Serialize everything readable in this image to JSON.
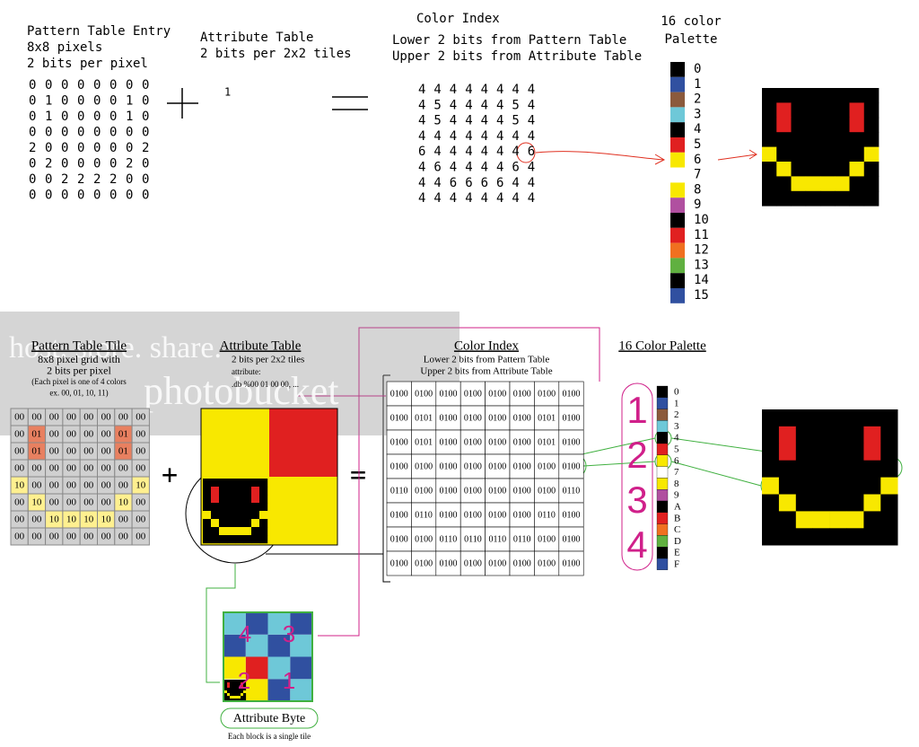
{
  "top": {
    "pattern": {
      "lines": [
        "Pattern Table Entry",
        "8x8 pixels",
        "2 bits per pixel"
      ],
      "grid": [
        [
          "0",
          "0",
          "0",
          "0",
          "0",
          "0",
          "0",
          "0"
        ],
        [
          "0",
          "1",
          "0",
          "0",
          "0",
          "0",
          "1",
          "0"
        ],
        [
          "0",
          "1",
          "0",
          "0",
          "0",
          "0",
          "1",
          "0"
        ],
        [
          "0",
          "0",
          "0",
          "0",
          "0",
          "0",
          "0",
          "0"
        ],
        [
          "2",
          "0",
          "0",
          "0",
          "0",
          "0",
          "0",
          "2"
        ],
        [
          "0",
          "2",
          "0",
          "0",
          "0",
          "0",
          "2",
          "0"
        ],
        [
          "0",
          "0",
          "2",
          "2",
          "2",
          "2",
          "0",
          "0"
        ],
        [
          "0",
          "0",
          "0",
          "0",
          "0",
          "0",
          "0",
          "0"
        ]
      ]
    },
    "attribute": {
      "lines": [
        "Attribute Table",
        "2 bits per 2x2 tiles"
      ],
      "value": "1"
    },
    "color_index": {
      "title": "Color Index",
      "lines": [
        "Lower 2 bits from Pattern Table",
        "Upper 2 bits from Attribute Table"
      ],
      "grid": [
        [
          "4",
          "4",
          "4",
          "4",
          "4",
          "4",
          "4",
          "4"
        ],
        [
          "4",
          "5",
          "4",
          "4",
          "4",
          "4",
          "5",
          "4"
        ],
        [
          "4",
          "5",
          "4",
          "4",
          "4",
          "4",
          "5",
          "4"
        ],
        [
          "4",
          "4",
          "4",
          "4",
          "4",
          "4",
          "4",
          "4"
        ],
        [
          "6",
          "4",
          "4",
          "4",
          "4",
          "4",
          "4",
          "6"
        ],
        [
          "4",
          "6",
          "4",
          "4",
          "4",
          "4",
          "6",
          "4"
        ],
        [
          "4",
          "4",
          "6",
          "6",
          "6",
          "6",
          "4",
          "4"
        ],
        [
          "4",
          "4",
          "4",
          "4",
          "4",
          "4",
          "4",
          "4"
        ]
      ]
    },
    "palette": {
      "lines": [
        "16 color",
        "Palette"
      ],
      "labels": [
        "0",
        "1",
        "2",
        "3",
        "4",
        "5",
        "6",
        "7",
        "8",
        "9",
        "10",
        "11",
        "12",
        "13",
        "14",
        "15"
      ]
    }
  },
  "bottom": {
    "watermark": [
      "host. store. share.",
      "photobucket"
    ],
    "pattern": {
      "title": "Pattern Table Tile",
      "lines": [
        "8x8 pixel grid with",
        "2 bits per pixel",
        "(Each pixel is one of 4 colors",
        "ex. 00, 01, 10, 11)"
      ],
      "grid": [
        [
          "00",
          "00",
          "00",
          "00",
          "00",
          "00",
          "00",
          "00"
        ],
        [
          "00",
          "01",
          "00",
          "00",
          "00",
          "00",
          "01",
          "00"
        ],
        [
          "00",
          "01",
          "00",
          "00",
          "00",
          "00",
          "01",
          "00"
        ],
        [
          "00",
          "00",
          "00",
          "00",
          "00",
          "00",
          "00",
          "00"
        ],
        [
          "10",
          "00",
          "00",
          "00",
          "00",
          "00",
          "00",
          "10"
        ],
        [
          "00",
          "10",
          "00",
          "00",
          "00",
          "00",
          "10",
          "00"
        ],
        [
          "00",
          "00",
          "10",
          "10",
          "10",
          "10",
          "00",
          "00"
        ],
        [
          "00",
          "00",
          "00",
          "00",
          "00",
          "00",
          "00",
          "00"
        ]
      ]
    },
    "attribute": {
      "title": "Attribute Table",
      "lines": [
        "2 bits per 2x2 tiles",
        "attribute:",
        ".db %00 01 00 00, ..."
      ]
    },
    "color_index": {
      "title": "Color Index",
      "lines": [
        "Lower 2 bits from Pattern Table",
        "Upper 2 bits from Attribute Table"
      ],
      "grid": [
        [
          "0100",
          "0100",
          "0100",
          "0100",
          "0100",
          "0100",
          "0100",
          "0100"
        ],
        [
          "0100",
          "0101",
          "0100",
          "0100",
          "0100",
          "0100",
          "0101",
          "0100"
        ],
        [
          "0100",
          "0101",
          "0100",
          "0100",
          "0100",
          "0100",
          "0101",
          "0100"
        ],
        [
          "0100",
          "0100",
          "0100",
          "0100",
          "0100",
          "0100",
          "0100",
          "0100"
        ],
        [
          "0110",
          "0100",
          "0100",
          "0100",
          "0100",
          "0100",
          "0100",
          "0110"
        ],
        [
          "0100",
          "0110",
          "0100",
          "0100",
          "0100",
          "0100",
          "0110",
          "0100"
        ],
        [
          "0100",
          "0100",
          "0110",
          "0110",
          "0110",
          "0110",
          "0100",
          "0100"
        ],
        [
          "0100",
          "0100",
          "0100",
          "0100",
          "0100",
          "0100",
          "0100",
          "0100"
        ]
      ]
    },
    "palette": {
      "title": "16 Color Palette",
      "labels": [
        "0",
        "1",
        "2",
        "3",
        "4",
        "5",
        "6",
        "7",
        "8",
        "9",
        "A",
        "B",
        "C",
        "D",
        "E",
        "F"
      ],
      "groups": [
        "1",
        "2",
        "3",
        "4"
      ]
    },
    "attribute_byte": {
      "numbers": [
        "4",
        "3",
        "2",
        "1"
      ],
      "title": "Attribute Byte",
      "caption": "Each block is a single tile"
    }
  },
  "palette_colors": [
    "#000000",
    "#3050a0",
    "#8b5a3c",
    "#6ec8d8",
    "#000000",
    "#e02020",
    "#f8e800",
    "#ffffff",
    "#f8e800",
    "#b050a0",
    "#000000",
    "#e02020",
    "#f07020",
    "#60b040",
    "#000000",
    "#3050a0"
  ]
}
